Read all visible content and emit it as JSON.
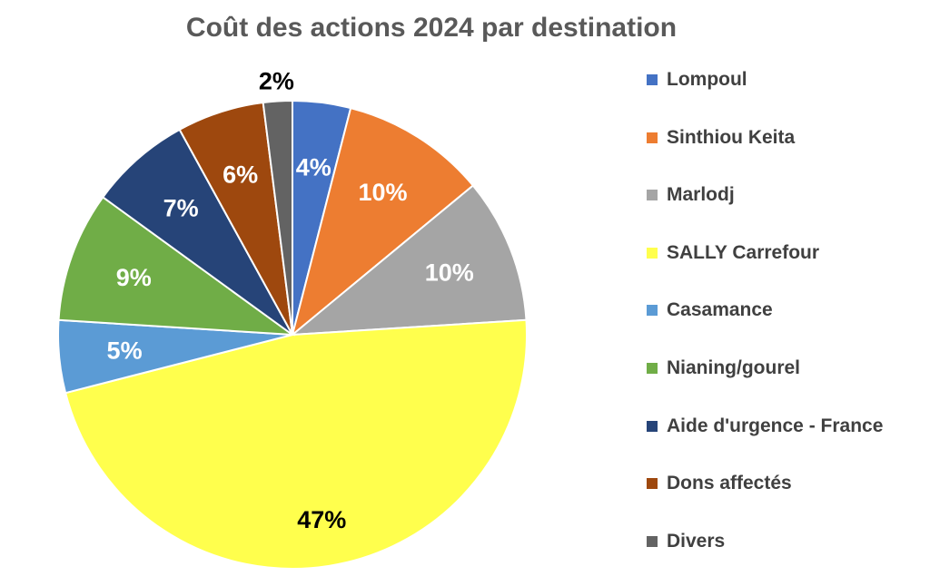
{
  "chart_data": {
    "type": "pie",
    "title": "Coût des actions 2024 par destination",
    "legend_position": "right",
    "slices": [
      {
        "name": "Lompoul",
        "value": 4,
        "label": "4%",
        "color": "#4472C4",
        "label_color": "#FFFFFF"
      },
      {
        "name": "Sinthiou Keita",
        "value": 10,
        "label": "10%",
        "color": "#ED7D31",
        "label_color": "#FFFFFF"
      },
      {
        "name": "Marlodj",
        "value": 10,
        "label": "10%",
        "color": "#A5A5A5",
        "label_color": "#FFFFFF"
      },
      {
        "name": "SALLY Carrefour",
        "value": 47,
        "label": "47%",
        "color": "#FFFF4D",
        "label_color": "#000000"
      },
      {
        "name": "Casamance",
        "value": 5,
        "label": "5%",
        "color": "#5B9BD5",
        "label_color": "#FFFFFF"
      },
      {
        "name": "Nianing/gourel",
        "value": 9,
        "label": "9%",
        "color": "#70AD47",
        "label_color": "#FFFFFF"
      },
      {
        "name": "Aide d'urgence - France",
        "value": 7,
        "label": "7%",
        "color": "#264478",
        "label_color": "#FFFFFF"
      },
      {
        "name": "Dons affectés",
        "value": 6,
        "label": "6%",
        "color": "#9E480E",
        "label_color": "#FFFFFF"
      },
      {
        "name": "Divers",
        "value": 2,
        "label": "2%",
        "color": "#636363",
        "label_color": "#000000"
      }
    ]
  }
}
